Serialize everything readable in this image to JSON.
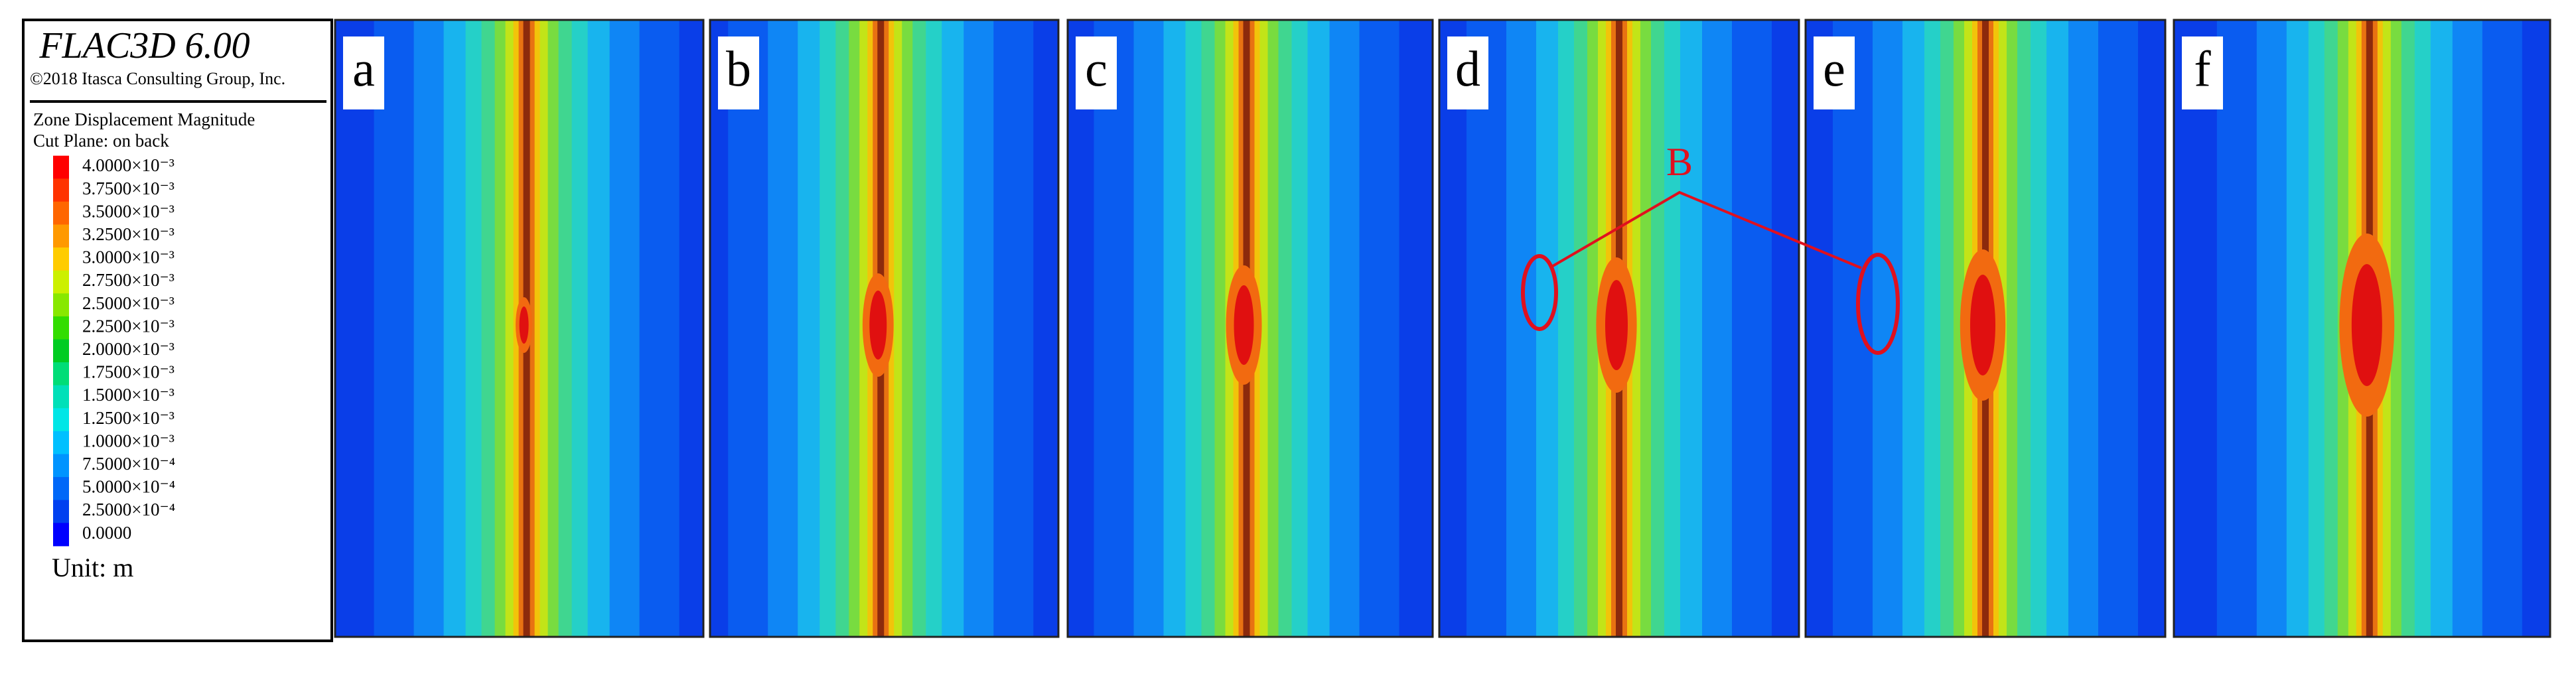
{
  "legend": {
    "title": "FLAC3D 6.00",
    "copyright": "©2018 Itasca Consulting Group, Inc.",
    "quantity": "Zone Displacement Magnitude",
    "cut_plane": "Cut Plane: on back",
    "entries": [
      {
        "label": "4.0000×10⁻³",
        "color": "#ff0000"
      },
      {
        "label": "3.7500×10⁻³",
        "color": "#ff3300"
      },
      {
        "label": "3.5000×10⁻³",
        "color": "#ff6600"
      },
      {
        "label": "3.2500×10⁻³",
        "color": "#ff9900"
      },
      {
        "label": "3.0000×10⁻³",
        "color": "#ffcc00"
      },
      {
        "label": "2.7500×10⁻³",
        "color": "#ccf000"
      },
      {
        "label": "2.5000×10⁻³",
        "color": "#88e800"
      },
      {
        "label": "2.2500×10⁻³",
        "color": "#33dd00"
      },
      {
        "label": "2.0000×10⁻³",
        "color": "#00cc22"
      },
      {
        "label": "1.7500×10⁻³",
        "color": "#00dd77"
      },
      {
        "label": "1.5000×10⁻³",
        "color": "#00e0b8"
      },
      {
        "label": "1.2500×10⁻³",
        "color": "#00e6e6"
      },
      {
        "label": "1.0000×10⁻³",
        "color": "#00c0ff"
      },
      {
        "label": "7.5000×10⁻⁴",
        "color": "#0094ff"
      },
      {
        "label": "5.0000×10⁻⁴",
        "color": "#0068f8"
      },
      {
        "label": "2.5000×10⁻⁴",
        "color": "#0040f0"
      },
      {
        "label": "0.0000",
        "color": "#0000ff"
      }
    ],
    "unit": "Unit: m"
  },
  "panels": [
    {
      "label": "a"
    },
    {
      "label": "b"
    },
    {
      "label": "c"
    },
    {
      "label": "d"
    },
    {
      "label": "e"
    },
    {
      "label": "f"
    }
  ],
  "annotation": {
    "label": "B",
    "color": "#e0101e"
  }
}
